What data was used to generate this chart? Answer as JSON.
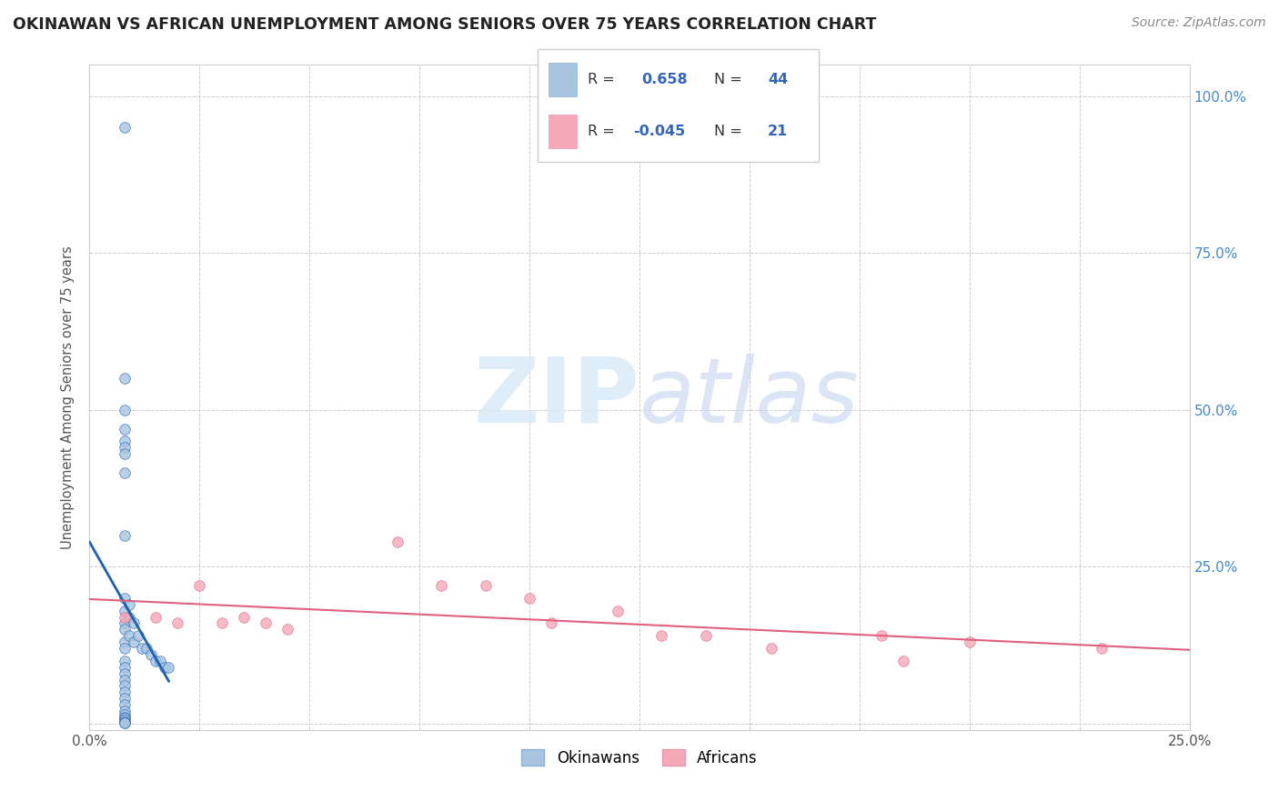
{
  "title": "OKINAWAN VS AFRICAN UNEMPLOYMENT AMONG SENIORS OVER 75 YEARS CORRELATION CHART",
  "source": "Source: ZipAtlas.com",
  "okinawan_R": 0.658,
  "okinawan_N": 44,
  "african_R": -0.045,
  "african_N": 21,
  "okinawan_color": "#a8c4e0",
  "african_color": "#f4a8b8",
  "okinawan_line_color": "#2060b0",
  "african_line_color": "#e06080",
  "xlim": [
    0.0,
    0.25
  ],
  "ylim": [
    -0.01,
    1.05
  ],
  "okinawan_x": [
    0.008,
    0.008,
    0.008,
    0.008,
    0.008,
    0.008,
    0.008,
    0.008,
    0.008,
    0.008,
    0.008,
    0.008,
    0.008,
    0.008,
    0.008,
    0.008,
    0.008,
    0.008,
    0.008,
    0.008,
    0.008,
    0.008,
    0.008,
    0.008,
    0.008,
    0.008,
    0.008,
    0.008,
    0.008,
    0.008,
    0.009,
    0.009,
    0.009,
    0.01,
    0.01,
    0.011,
    0.012,
    0.013,
    0.014,
    0.015,
    0.016,
    0.017,
    0.018,
    0.008
  ],
  "okinawan_y": [
    0.95,
    0.55,
    0.5,
    0.47,
    0.45,
    0.44,
    0.43,
    0.4,
    0.2,
    0.18,
    0.16,
    0.15,
    0.13,
    0.12,
    0.1,
    0.09,
    0.08,
    0.07,
    0.06,
    0.05,
    0.04,
    0.03,
    0.02,
    0.015,
    0.01,
    0.008,
    0.005,
    0.003,
    0.002,
    0.001,
    0.19,
    0.17,
    0.14,
    0.16,
    0.13,
    0.14,
    0.12,
    0.12,
    0.11,
    0.1,
    0.1,
    0.09,
    0.09,
    0.3
  ],
  "african_x": [
    0.008,
    0.015,
    0.02,
    0.025,
    0.03,
    0.035,
    0.04,
    0.045,
    0.07,
    0.08,
    0.09,
    0.1,
    0.105,
    0.12,
    0.13,
    0.14,
    0.155,
    0.18,
    0.185,
    0.2,
    0.23
  ],
  "african_y": [
    0.17,
    0.17,
    0.16,
    0.22,
    0.16,
    0.17,
    0.16,
    0.15,
    0.29,
    0.22,
    0.22,
    0.2,
    0.16,
    0.18,
    0.14,
    0.14,
    0.12,
    0.14,
    0.1,
    0.13,
    0.12
  ]
}
